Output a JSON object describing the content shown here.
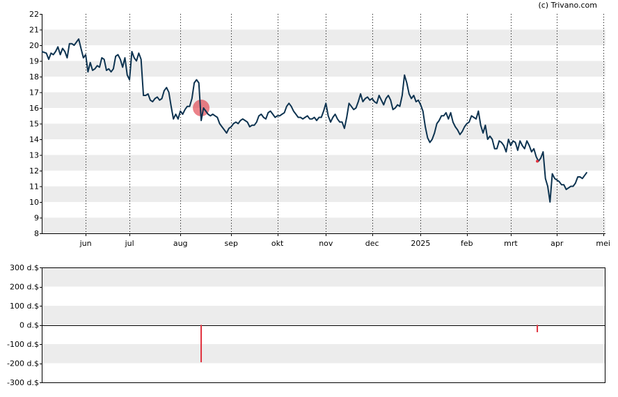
{
  "credit": "(c) Trivano.com",
  "colors": {
    "line": "#0d3350",
    "stripe": "#ececec",
    "marker": "#e0303c",
    "axis": "#000000",
    "monthline": "#000000"
  },
  "chart_data": [
    {
      "type": "line",
      "name": "price",
      "yticks": [
        8,
        9,
        10,
        11,
        12,
        13,
        14,
        15,
        16,
        17,
        18,
        19,
        20,
        21,
        22
      ],
      "ylim": [
        8,
        22
      ],
      "xlim": [
        0,
        244
      ],
      "month_labels": [
        {
          "label": "jun",
          "x": 19
        },
        {
          "label": "jul",
          "x": 38
        },
        {
          "label": "aug",
          "x": 60
        },
        {
          "label": "sep",
          "x": 82
        },
        {
          "label": "okt",
          "x": 102
        },
        {
          "label": "nov",
          "x": 123
        },
        {
          "label": "dec",
          "x": 143
        },
        {
          "label": "2025",
          "x": 164
        },
        {
          "label": "feb",
          "x": 184
        },
        {
          "label": "mrt",
          "x": 203
        },
        {
          "label": "apr",
          "x": 223
        },
        {
          "label": "mei",
          "x": 243
        }
      ],
      "series": [
        {
          "points": [
            [
              0,
              19.6
            ],
            [
              2,
              19.5
            ],
            [
              3,
              19.1
            ],
            [
              4,
              19.5
            ],
            [
              5,
              19.4
            ],
            [
              6,
              19.6
            ],
            [
              7,
              19.9
            ],
            [
              8,
              19.4
            ],
            [
              9,
              19.8
            ],
            [
              10,
              19.6
            ],
            [
              11,
              19.2
            ],
            [
              12,
              20.1
            ],
            [
              13,
              20.1
            ],
            [
              14,
              20.0
            ],
            [
              15,
              20.2
            ],
            [
              16,
              20.4
            ],
            [
              17,
              19.8
            ],
            [
              18,
              19.2
            ],
            [
              19,
              19.4
            ],
            [
              20,
              18.3
            ],
            [
              21,
              18.9
            ],
            [
              22,
              18.4
            ],
            [
              23,
              18.5
            ],
            [
              24,
              18.7
            ],
            [
              25,
              18.6
            ],
            [
              26,
              19.2
            ],
            [
              27,
              19.1
            ],
            [
              28,
              18.4
            ],
            [
              29,
              18.5
            ],
            [
              30,
              18.3
            ],
            [
              31,
              18.5
            ],
            [
              32,
              19.3
            ],
            [
              33,
              19.4
            ],
            [
              34,
              19.1
            ],
            [
              35,
              18.6
            ],
            [
              36,
              19.2
            ],
            [
              37,
              18.1
            ],
            [
              38,
              17.8
            ],
            [
              39,
              19.6
            ],
            [
              40,
              19.2
            ],
            [
              41,
              19.0
            ],
            [
              42,
              19.5
            ],
            [
              43,
              19.1
            ],
            [
              44,
              16.8
            ],
            [
              45,
              16.8
            ],
            [
              46,
              16.9
            ],
            [
              47,
              16.5
            ],
            [
              48,
              16.4
            ],
            [
              49,
              16.6
            ],
            [
              50,
              16.7
            ],
            [
              51,
              16.5
            ],
            [
              52,
              16.6
            ],
            [
              53,
              17.1
            ],
            [
              54,
              17.3
            ],
            [
              55,
              17.0
            ],
            [
              56,
              16.1
            ],
            [
              57,
              15.3
            ],
            [
              58,
              15.6
            ],
            [
              59,
              15.3
            ],
            [
              60,
              15.8
            ],
            [
              61,
              15.6
            ],
            [
              62,
              15.9
            ],
            [
              63,
              16.1
            ],
            [
              64,
              16.1
            ],
            [
              65,
              16.6
            ],
            [
              66,
              17.6
            ],
            [
              67,
              17.8
            ],
            [
              68,
              17.6
            ],
            [
              69,
              15.2
            ],
            [
              70,
              16.0
            ],
            [
              71,
              15.8
            ],
            [
              72,
              15.6
            ],
            [
              73,
              15.5
            ],
            [
              74,
              15.6
            ],
            [
              75,
              15.5
            ],
            [
              76,
              15.4
            ],
            [
              77,
              15.0
            ],
            [
              78,
              14.8
            ],
            [
              79,
              14.6
            ],
            [
              80,
              14.4
            ],
            [
              81,
              14.7
            ],
            [
              82,
              14.8
            ],
            [
              83,
              15.0
            ],
            [
              84,
              15.1
            ],
            [
              85,
              15.0
            ],
            [
              86,
              15.2
            ],
            [
              87,
              15.3
            ],
            [
              88,
              15.2
            ],
            [
              89,
              15.1
            ],
            [
              90,
              14.8
            ],
            [
              91,
              14.9
            ],
            [
              92,
              14.9
            ],
            [
              93,
              15.1
            ],
            [
              94,
              15.5
            ],
            [
              95,
              15.6
            ],
            [
              96,
              15.4
            ],
            [
              97,
              15.3
            ],
            [
              98,
              15.7
            ],
            [
              99,
              15.8
            ],
            [
              100,
              15.6
            ],
            [
              101,
              15.4
            ],
            [
              102,
              15.5
            ],
            [
              103,
              15.5
            ],
            [
              104,
              15.6
            ],
            [
              105,
              15.7
            ],
            [
              106,
              16.1
            ],
            [
              107,
              16.3
            ],
            [
              108,
              16.1
            ],
            [
              109,
              15.8
            ],
            [
              110,
              15.6
            ],
            [
              111,
              15.4
            ],
            [
              112,
              15.4
            ],
            [
              113,
              15.3
            ],
            [
              114,
              15.4
            ],
            [
              115,
              15.5
            ],
            [
              116,
              15.3
            ],
            [
              117,
              15.3
            ],
            [
              118,
              15.4
            ],
            [
              119,
              15.2
            ],
            [
              120,
              15.4
            ],
            [
              121,
              15.4
            ],
            [
              122,
              15.8
            ],
            [
              123,
              16.3
            ],
            [
              124,
              15.5
            ],
            [
              125,
              15.1
            ],
            [
              126,
              15.4
            ],
            [
              127,
              15.6
            ],
            [
              128,
              15.3
            ],
            [
              129,
              15.1
            ],
            [
              130,
              15.1
            ],
            [
              131,
              14.7
            ],
            [
              132,
              15.4
            ],
            [
              133,
              16.3
            ],
            [
              134,
              16.1
            ],
            [
              135,
              15.9
            ],
            [
              136,
              16.0
            ],
            [
              137,
              16.4
            ],
            [
              138,
              16.9
            ],
            [
              139,
              16.4
            ],
            [
              140,
              16.6
            ],
            [
              141,
              16.7
            ],
            [
              142,
              16.5
            ],
            [
              143,
              16.6
            ],
            [
              144,
              16.4
            ],
            [
              145,
              16.3
            ],
            [
              146,
              16.8
            ],
            [
              147,
              16.5
            ],
            [
              148,
              16.2
            ],
            [
              149,
              16.6
            ],
            [
              150,
              16.8
            ],
            [
              151,
              16.5
            ],
            [
              152,
              15.9
            ],
            [
              153,
              16.0
            ],
            [
              154,
              16.2
            ],
            [
              155,
              16.1
            ],
            [
              156,
              16.8
            ],
            [
              157,
              18.1
            ],
            [
              158,
              17.6
            ],
            [
              159,
              16.9
            ],
            [
              160,
              16.6
            ],
            [
              161,
              16.8
            ],
            [
              162,
              16.4
            ],
            [
              163,
              16.5
            ],
            [
              164,
              16.2
            ],
            [
              165,
              15.8
            ],
            [
              166,
              14.8
            ],
            [
              167,
              14.1
            ],
            [
              168,
              13.8
            ],
            [
              169,
              14.0
            ],
            [
              170,
              14.4
            ],
            [
              171,
              15.0
            ],
            [
              172,
              15.2
            ],
            [
              173,
              15.5
            ],
            [
              174,
              15.5
            ],
            [
              175,
              15.7
            ],
            [
              176,
              15.3
            ],
            [
              177,
              15.7
            ],
            [
              178,
              15.1
            ],
            [
              179,
              14.8
            ],
            [
              180,
              14.6
            ],
            [
              181,
              14.3
            ],
            [
              182,
              14.5
            ],
            [
              183,
              14.8
            ],
            [
              184,
              15.0
            ],
            [
              185,
              15.1
            ],
            [
              186,
              15.5
            ],
            [
              187,
              15.4
            ],
            [
              188,
              15.3
            ],
            [
              189,
              15.8
            ],
            [
              190,
              14.9
            ],
            [
              191,
              14.4
            ],
            [
              192,
              14.9
            ],
            [
              193,
              14.0
            ],
            [
              194,
              14.2
            ],
            [
              195,
              14.0
            ],
            [
              196,
              13.4
            ],
            [
              197,
              13.4
            ],
            [
              198,
              13.9
            ],
            [
              199,
              13.8
            ],
            [
              200,
              13.6
            ],
            [
              201,
              13.2
            ],
            [
              202,
              14.0
            ],
            [
              203,
              13.6
            ],
            [
              204,
              13.9
            ],
            [
              205,
              13.8
            ],
            [
              206,
              13.3
            ],
            [
              207,
              13.9
            ],
            [
              208,
              13.6
            ],
            [
              209,
              13.4
            ],
            [
              210,
              13.9
            ],
            [
              211,
              13.6
            ],
            [
              212,
              13.2
            ],
            [
              213,
              13.4
            ],
            [
              214,
              12.9
            ],
            [
              215,
              12.6
            ],
            [
              216,
              12.8
            ],
            [
              217,
              13.2
            ],
            [
              218,
              11.5
            ],
            [
              219,
              11.0
            ],
            [
              220,
              10.0
            ],
            [
              221,
              11.8
            ],
            [
              222,
              11.5
            ],
            [
              223,
              11.4
            ],
            [
              224,
              11.3
            ],
            [
              225,
              11.1
            ],
            [
              226,
              11.1
            ],
            [
              227,
              10.8
            ],
            [
              228,
              10.9
            ],
            [
              229,
              11.0
            ],
            [
              230,
              11.0
            ],
            [
              231,
              11.2
            ],
            [
              232,
              11.6
            ],
            [
              233,
              11.6
            ],
            [
              234,
              11.5
            ],
            [
              235,
              11.7
            ],
            [
              236,
              11.9
            ]
          ]
        }
      ],
      "highlights": [
        {
          "kind": "circle",
          "x": 69,
          "y": 16.0
        },
        {
          "kind": "dot",
          "x": 214.5,
          "y": 12.6
        }
      ]
    },
    {
      "type": "bar",
      "name": "insider-transactions",
      "ytick_labels": [
        "300 d.$",
        "200 d.$",
        "100 d.$",
        "0 d.$",
        "-100 d.$",
        "-200 d.$",
        "-300 d.$"
      ],
      "yticks": [
        300,
        200,
        100,
        0,
        -100,
        -200,
        -300
      ],
      "ylim": [
        -300,
        300
      ],
      "bars": [
        {
          "x": 69,
          "value": -195
        },
        {
          "x": 214.5,
          "value": -38
        }
      ]
    }
  ]
}
